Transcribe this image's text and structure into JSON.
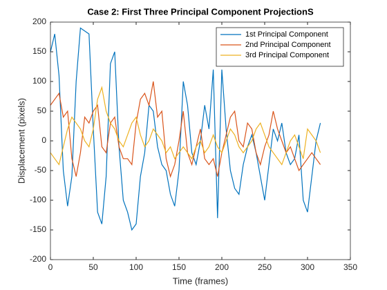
{
  "chart_data": {
    "type": "line",
    "title": "Case 2: First Three Principal Component ProjectionS",
    "xlabel": "Time (frames)",
    "ylabel": "Displacement (pixels)",
    "x": [
      0,
      5,
      10,
      15,
      20,
      25,
      30,
      35,
      40,
      45,
      50,
      55,
      60,
      65,
      70,
      75,
      80,
      85,
      90,
      95,
      100,
      105,
      110,
      115,
      120,
      125,
      130,
      135,
      140,
      145,
      150,
      155,
      160,
      165,
      170,
      175,
      180,
      185,
      190,
      195,
      200,
      205,
      210,
      215,
      220,
      225,
      230,
      235,
      240,
      245,
      250,
      255,
      260,
      265,
      270,
      275,
      280,
      285,
      290,
      295,
      300,
      305,
      310,
      315
    ],
    "series": [
      {
        "name": "1st Principal Component",
        "color": "#0072BD",
        "values": [
          150,
          180,
          110,
          -50,
          -110,
          -60,
          100,
          190,
          185,
          180,
          20,
          -120,
          -140,
          -60,
          130,
          150,
          -10,
          -100,
          -120,
          -150,
          -140,
          -60,
          -20,
          60,
          50,
          -10,
          -40,
          -50,
          -90,
          -110,
          -50,
          100,
          60,
          -20,
          -40,
          0,
          60,
          20,
          120,
          -130,
          120,
          20,
          -50,
          -80,
          -90,
          -40,
          -10,
          10,
          -20,
          -60,
          -100,
          -40,
          20,
          0,
          30,
          -20,
          -40,
          -30,
          10,
          -100,
          -120,
          -60,
          0,
          30
        ]
      },
      {
        "name": "2nd Principal Component",
        "color": "#D95319",
        "values": [
          60,
          70,
          80,
          40,
          50,
          -30,
          -60,
          -20,
          40,
          30,
          50,
          60,
          -10,
          -20,
          30,
          40,
          -10,
          -30,
          -30,
          -40,
          30,
          70,
          80,
          60,
          100,
          40,
          50,
          -30,
          -60,
          -40,
          0,
          50,
          -20,
          -40,
          -10,
          20,
          -30,
          -40,
          -30,
          -60,
          -20,
          10,
          40,
          50,
          0,
          -10,
          30,
          20,
          -20,
          -40,
          -10,
          10,
          50,
          20,
          0,
          -20,
          -10,
          -30,
          -50,
          -40,
          -30,
          -20,
          -30,
          -40
        ]
      },
      {
        "name": "3rd Principal Component",
        "color": "#EDB120",
        "values": [
          -20,
          -30,
          -40,
          -10,
          20,
          40,
          30,
          20,
          0,
          -10,
          20,
          70,
          90,
          50,
          30,
          20,
          0,
          -10,
          10,
          30,
          40,
          10,
          -10,
          0,
          20,
          10,
          0,
          -20,
          -10,
          -30,
          -20,
          -10,
          -20,
          -30,
          -10,
          0,
          -20,
          -10,
          10,
          -10,
          -20,
          0,
          20,
          10,
          -10,
          -20,
          -10,
          0,
          20,
          30,
          10,
          -10,
          -20,
          -30,
          -40,
          -20,
          0,
          10,
          -10,
          -30,
          20,
          10,
          0,
          -20
        ]
      }
    ],
    "xlim": [
      0,
      350
    ],
    "xticks": [
      0,
      50,
      100,
      150,
      200,
      250,
      300,
      350
    ],
    "ylim": [
      -200,
      200
    ],
    "yticks": [
      -200,
      -150,
      -100,
      -50,
      0,
      50,
      100,
      150,
      200
    ],
    "grid": false,
    "legend": "northeast"
  }
}
